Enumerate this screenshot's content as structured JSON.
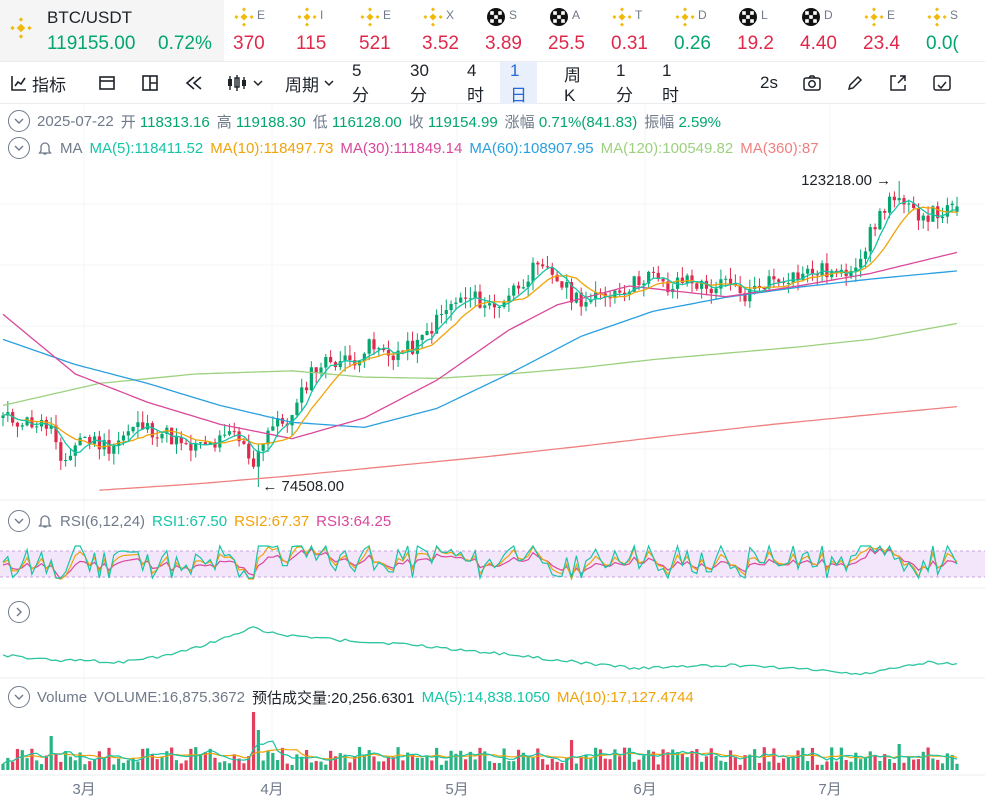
{
  "ticker": {
    "main": {
      "symbol": "BTC/USDT",
      "price": "119155.00",
      "change": "0.72%"
    },
    "items": [
      {
        "icon": "bnb-icon",
        "name": "E",
        "value": "370",
        "dir": "down"
      },
      {
        "icon": "bnb-icon",
        "name": "I",
        "value": "115",
        "dir": "down"
      },
      {
        "icon": "bnb-icon",
        "name": "E",
        "value": "521",
        "dir": "down"
      },
      {
        "icon": "bnb-icon",
        "name": "X",
        "value": "3.52",
        "dir": "down"
      },
      {
        "icon": "chess-icon",
        "name": "S",
        "value": "3.89",
        "dir": "down"
      },
      {
        "icon": "chess-icon",
        "name": "A",
        "value": "25.5",
        "dir": "down"
      },
      {
        "icon": "bnb-icon",
        "name": "T",
        "value": "0.31",
        "dir": "down"
      },
      {
        "icon": "bnb-icon",
        "name": "D",
        "value": "0.26",
        "dir": "up"
      },
      {
        "icon": "chess-icon",
        "name": "L",
        "value": "19.2",
        "dir": "down"
      },
      {
        "icon": "chess-icon",
        "name": "D",
        "value": "4.40",
        "dir": "down"
      },
      {
        "icon": "bnb-icon",
        "name": "E",
        "value": "23.4",
        "dir": "down"
      },
      {
        "icon": "bnb-icon",
        "name": "S",
        "value": "0.0(",
        "dir": "up"
      }
    ]
  },
  "toolbar": {
    "indicators": "指标",
    "period": "周期",
    "intervals": [
      "5分",
      "30分",
      "4时",
      "1日",
      "周K",
      "1分",
      "1时"
    ],
    "active_interval": "1日",
    "refresh": "2s"
  },
  "ohlc": {
    "date": "2025-07-22",
    "open_label": "开",
    "open": "118313.16",
    "high_label": "高",
    "high": "119188.30",
    "low_label": "低",
    "low": "116128.00",
    "close_label": "收",
    "close": "119154.99",
    "change_label": "涨幅",
    "change": "0.71%(841.83)",
    "amp_label": "振幅",
    "amp": "2.59%"
  },
  "ma_legend": {
    "label": "MA",
    "items": [
      {
        "text": "MA(5):118411.52",
        "color": "#15c5a6"
      },
      {
        "text": "MA(10):118497.73",
        "color": "#f0a30a"
      },
      {
        "text": "MA(30):111849.14",
        "color": "#d9489b"
      },
      {
        "text": "MA(60):108907.95",
        "color": "#2a9fe0"
      },
      {
        "text": "MA(120):100549.82",
        "color": "#9dd17f"
      },
      {
        "text": "MA(360):87",
        "color": "#f08080"
      }
    ]
  },
  "rsi_legend": {
    "label": "RSI(6,12,24)",
    "items": [
      {
        "text": "RSI1:67.50",
        "color": "#15c5a6"
      },
      {
        "text": "RSI2:67.37",
        "color": "#f0a30a"
      },
      {
        "text": "RSI3:64.25",
        "color": "#d9489b"
      }
    ]
  },
  "vol_legend": {
    "label": "Volume",
    "items": [
      {
        "text": "VOLUME:16,875.3672",
        "color": "#707a8a"
      },
      {
        "text": "预估成交量:20,256.6301",
        "color": "#1e2329"
      },
      {
        "text": "MA(5):14,838.1050",
        "color": "#15c5a6"
      },
      {
        "text": "MA(10):17,127.4744",
        "color": "#f0a30a"
      }
    ]
  },
  "colors": {
    "up": "#03a66d",
    "down": "#e0294a",
    "ma5": "#15c5a6",
    "ma10": "#f0a30a",
    "ma30": "#d9489b",
    "ma60": "#2a9fe0",
    "ma120": "#9dd17f",
    "ma360": "#f08080",
    "rsi_band": "#f3e6fb",
    "extra": "#2ec4a0"
  },
  "chart_data": {
    "type": "candlestick",
    "x_axis_labels": [
      "3月",
      "4月",
      "5月",
      "6月",
      "7月"
    ],
    "high_annotation": "123218.00",
    "low_annotation": "74508.00",
    "price_anchors": {
      "high": 123218,
      "low": 74508
    },
    "trend_closes": [
      [
        0,
        85500
      ],
      [
        6,
        84800
      ],
      [
        10,
        84000
      ],
      [
        12,
        77500
      ],
      [
        16,
        82500
      ],
      [
        22,
        81000
      ],
      [
        28,
        84200
      ],
      [
        34,
        83000
      ],
      [
        38,
        80500
      ],
      [
        44,
        81300
      ],
      [
        48,
        83000
      ],
      [
        52,
        78500
      ],
      [
        55,
        83800
      ],
      [
        60,
        85500
      ],
      [
        64,
        93000
      ],
      [
        68,
        94800
      ],
      [
        72,
        94500
      ],
      [
        76,
        96800
      ],
      [
        80,
        95500
      ],
      [
        86,
        97000
      ],
      [
        90,
        101000
      ],
      [
        94,
        104000
      ],
      [
        98,
        104500
      ],
      [
        102,
        103000
      ],
      [
        106,
        106000
      ],
      [
        110,
        109000
      ],
      [
        114,
        108500
      ],
      [
        118,
        105000
      ],
      [
        122,
        104000
      ],
      [
        126,
        105500
      ],
      [
        130,
        106500
      ],
      [
        134,
        108500
      ],
      [
        138,
        105800
      ],
      [
        142,
        107800
      ],
      [
        146,
        106000
      ],
      [
        150,
        106800
      ],
      [
        154,
        104800
      ],
      [
        158,
        107200
      ],
      [
        162,
        108000
      ],
      [
        166,
        108400
      ],
      [
        170,
        109000
      ],
      [
        174,
        108000
      ],
      [
        178,
        111500
      ],
      [
        182,
        117800
      ],
      [
        184,
        120500
      ],
      [
        188,
        118400
      ],
      [
        192,
        117900
      ],
      [
        196,
        118300
      ],
      [
        198,
        119155
      ]
    ],
    "ma_lines": {
      "ma30": [
        [
          0,
          102000
        ],
        [
          15,
          92500
        ],
        [
          30,
          88000
        ],
        [
          45,
          84500
        ],
        [
          60,
          82200
        ],
        [
          75,
          85500
        ],
        [
          90,
          91500
        ],
        [
          105,
          99500
        ],
        [
          115,
          103500
        ],
        [
          130,
          106500
        ],
        [
          150,
          104800
        ],
        [
          165,
          106500
        ],
        [
          180,
          108500
        ],
        [
          198,
          111849
        ]
      ],
      "ma60": [
        [
          0,
          98000
        ],
        [
          15,
          94000
        ],
        [
          30,
          91000
        ],
        [
          45,
          87500
        ],
        [
          60,
          84800
        ],
        [
          75,
          84000
        ],
        [
          90,
          87000
        ],
        [
          105,
          92500
        ],
        [
          120,
          98500
        ],
        [
          135,
          102500
        ],
        [
          150,
          104700
        ],
        [
          165,
          106300
        ],
        [
          180,
          107600
        ],
        [
          198,
          108908
        ]
      ],
      "ma120": [
        [
          0,
          87500
        ],
        [
          20,
          91000
        ],
        [
          40,
          92500
        ],
        [
          60,
          93000
        ],
        [
          75,
          92000
        ],
        [
          90,
          91800
        ],
        [
          105,
          92500
        ],
        [
          120,
          93500
        ],
        [
          135,
          94800
        ],
        [
          150,
          95800
        ],
        [
          165,
          96800
        ],
        [
          180,
          98000
        ],
        [
          198,
          100550
        ]
      ],
      "ma360": [
        [
          20,
          74000
        ],
        [
          40,
          75000
        ],
        [
          60,
          76300
        ],
        [
          80,
          77800
        ],
        [
          100,
          79300
        ],
        [
          120,
          81000
        ],
        [
          140,
          82800
        ],
        [
          160,
          84500
        ],
        [
          180,
          86000
        ],
        [
          198,
          87300
        ]
      ]
    },
    "rsi": {
      "values_latest": {
        "rsi1": 67.5,
        "rsi2": 67.37,
        "rsi3": 64.25
      }
    },
    "volume": {
      "latest": 16875.3672,
      "estimated": 20256.6301,
      "ma5": 14838.105,
      "ma10": 17127.4744
    }
  }
}
